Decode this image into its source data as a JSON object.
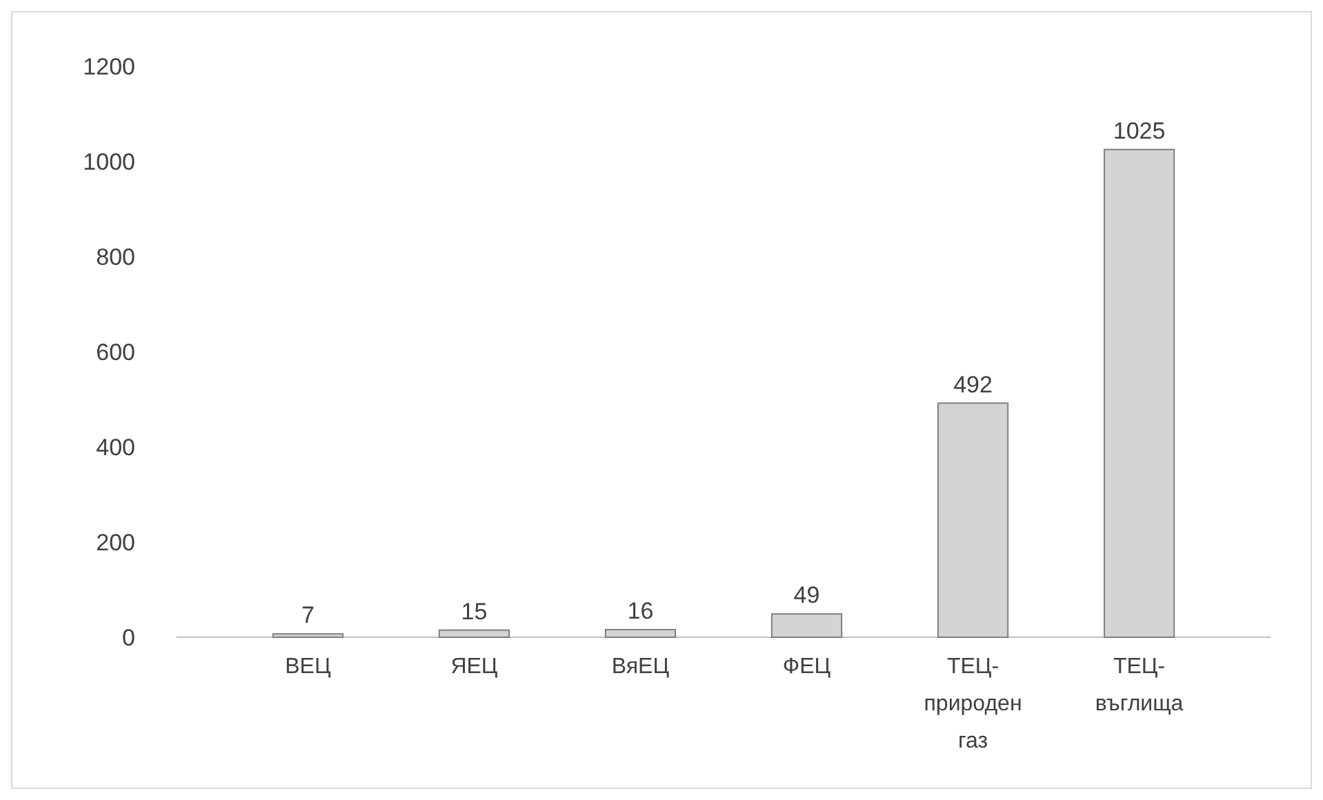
{
  "chart_data": {
    "type": "bar",
    "categories": [
      "ВЕЦ",
      "ЯЕЦ",
      "ВяЕЦ",
      "ФЕЦ",
      "ТЕЦ-природен газ",
      "ТЕЦ-въглища"
    ],
    "values": [
      7,
      15,
      16,
      49,
      492,
      1025
    ],
    "color": "#d4d4d4",
    "ylim": [
      0,
      1200
    ],
    "yticks": [
      0,
      200,
      400,
      600,
      800,
      1000,
      1200
    ],
    "data_labels": true
  }
}
